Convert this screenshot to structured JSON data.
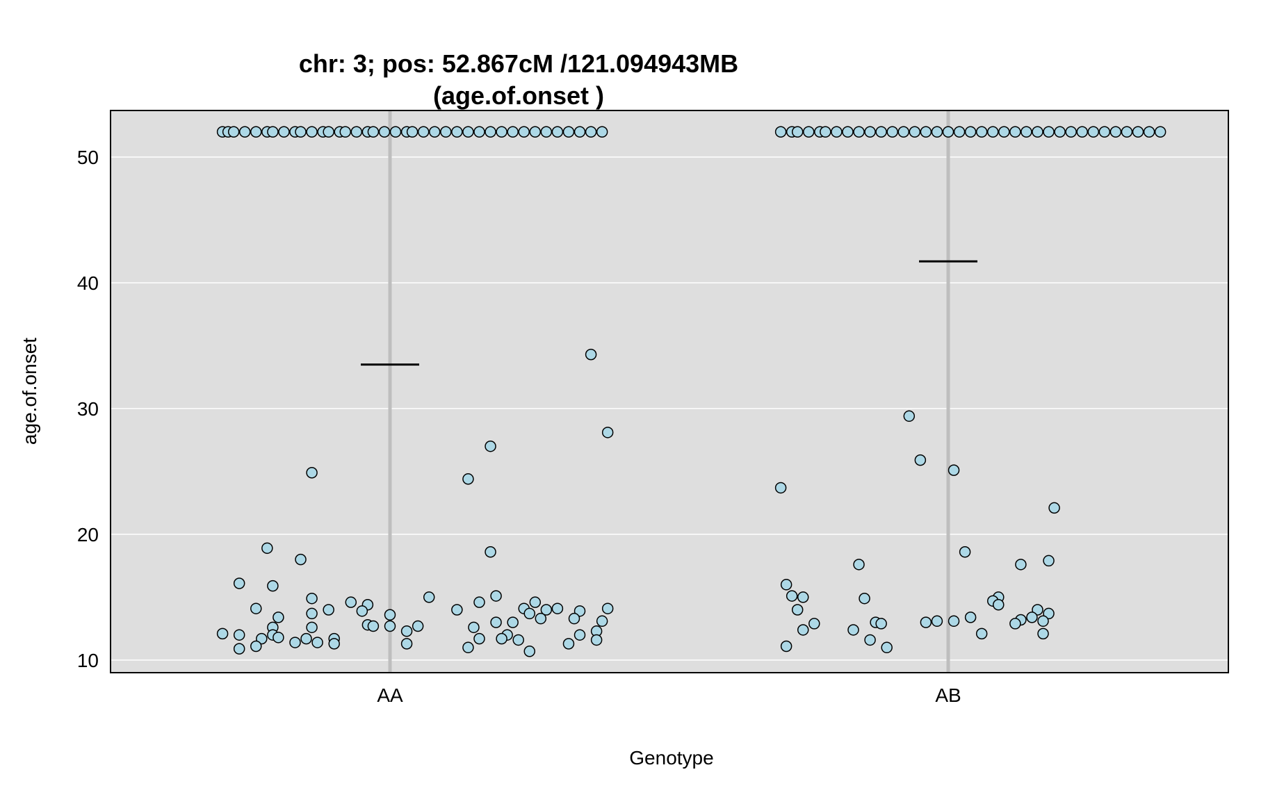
{
  "chart_data": {
    "type": "scatter",
    "title": "chr: 3; pos: 52.867cM /121.094943MB",
    "subtitle": "(age.of.onset )",
    "xlabel": "Genotype",
    "ylabel": "age.of.onset",
    "categories": [
      "AA",
      "AB"
    ],
    "ylim": [
      9,
      53.7
    ],
    "yticks": [
      10,
      20,
      30,
      40,
      50
    ],
    "ytick_labels": [
      "10",
      "20",
      "30",
      "40",
      "50"
    ],
    "grid": true,
    "colors": {
      "panel_background": "#dedede",
      "grid": "#ffffff",
      "point_fill": "#add8e6",
      "point_stroke": "#000000",
      "category_line": "#bebebe",
      "mean_line": "#000000"
    },
    "series": [
      {
        "category": "AA",
        "mean": 33.5,
        "points": [
          {
            "x": 0.7,
            "y": 52
          },
          {
            "x": 0.71,
            "y": 52
          },
          {
            "x": 0.72,
            "y": 52
          },
          {
            "x": 0.74,
            "y": 52
          },
          {
            "x": 0.76,
            "y": 52
          },
          {
            "x": 0.78,
            "y": 52
          },
          {
            "x": 0.79,
            "y": 52
          },
          {
            "x": 0.81,
            "y": 52
          },
          {
            "x": 0.83,
            "y": 52
          },
          {
            "x": 0.84,
            "y": 52
          },
          {
            "x": 0.86,
            "y": 52
          },
          {
            "x": 0.88,
            "y": 52
          },
          {
            "x": 0.89,
            "y": 52
          },
          {
            "x": 0.91,
            "y": 52
          },
          {
            "x": 0.92,
            "y": 52
          },
          {
            "x": 0.94,
            "y": 52
          },
          {
            "x": 0.96,
            "y": 52
          },
          {
            "x": 0.97,
            "y": 52
          },
          {
            "x": 0.99,
            "y": 52
          },
          {
            "x": 1.01,
            "y": 52
          },
          {
            "x": 1.03,
            "y": 52
          },
          {
            "x": 1.04,
            "y": 52
          },
          {
            "x": 1.06,
            "y": 52
          },
          {
            "x": 1.08,
            "y": 52
          },
          {
            "x": 1.1,
            "y": 52
          },
          {
            "x": 1.12,
            "y": 52
          },
          {
            "x": 1.14,
            "y": 52
          },
          {
            "x": 1.16,
            "y": 52
          },
          {
            "x": 1.18,
            "y": 52
          },
          {
            "x": 1.2,
            "y": 52
          },
          {
            "x": 1.22,
            "y": 52
          },
          {
            "x": 1.24,
            "y": 52
          },
          {
            "x": 1.26,
            "y": 52
          },
          {
            "x": 1.28,
            "y": 52
          },
          {
            "x": 1.3,
            "y": 52
          },
          {
            "x": 1.32,
            "y": 52
          },
          {
            "x": 1.34,
            "y": 52
          },
          {
            "x": 1.36,
            "y": 52
          },
          {
            "x": 1.38,
            "y": 52
          },
          {
            "x": 1.36,
            "y": 34.3
          },
          {
            "x": 1.39,
            "y": 28.1
          },
          {
            "x": 1.18,
            "y": 27.0
          },
          {
            "x": 0.86,
            "y": 24.9
          },
          {
            "x": 1.14,
            "y": 24.4
          },
          {
            "x": 0.78,
            "y": 18.9
          },
          {
            "x": 1.18,
            "y": 18.6
          },
          {
            "x": 0.84,
            "y": 18.0
          },
          {
            "x": 0.73,
            "y": 16.1
          },
          {
            "x": 0.79,
            "y": 15.9
          },
          {
            "x": 1.07,
            "y": 15.0
          },
          {
            "x": 1.19,
            "y": 15.1
          },
          {
            "x": 0.86,
            "y": 14.9
          },
          {
            "x": 0.93,
            "y": 14.6
          },
          {
            "x": 0.96,
            "y": 14.4
          },
          {
            "x": 1.16,
            "y": 14.6
          },
          {
            "x": 1.26,
            "y": 14.6
          },
          {
            "x": 1.3,
            "y": 14.1
          },
          {
            "x": 1.39,
            "y": 14.1
          },
          {
            "x": 0.76,
            "y": 14.1
          },
          {
            "x": 0.89,
            "y": 14.0
          },
          {
            "x": 1.12,
            "y": 14.0
          },
          {
            "x": 1.24,
            "y": 14.1
          },
          {
            "x": 1.28,
            "y": 14.0
          },
          {
            "x": 1.34,
            "y": 13.9
          },
          {
            "x": 0.95,
            "y": 13.9
          },
          {
            "x": 0.86,
            "y": 13.7
          },
          {
            "x": 1.25,
            "y": 13.7
          },
          {
            "x": 1.0,
            "y": 13.6
          },
          {
            "x": 0.8,
            "y": 13.4
          },
          {
            "x": 1.27,
            "y": 13.3
          },
          {
            "x": 1.33,
            "y": 13.3
          },
          {
            "x": 1.38,
            "y": 13.1
          },
          {
            "x": 1.19,
            "y": 13.0
          },
          {
            "x": 1.22,
            "y": 13.0
          },
          {
            "x": 0.96,
            "y": 12.8
          },
          {
            "x": 0.97,
            "y": 12.7
          },
          {
            "x": 1.0,
            "y": 12.7
          },
          {
            "x": 1.05,
            "y": 12.7
          },
          {
            "x": 0.79,
            "y": 12.6
          },
          {
            "x": 0.86,
            "y": 12.6
          },
          {
            "x": 1.15,
            "y": 12.6
          },
          {
            "x": 1.03,
            "y": 12.3
          },
          {
            "x": 1.37,
            "y": 12.3
          },
          {
            "x": 0.7,
            "y": 12.1
          },
          {
            "x": 0.73,
            "y": 12.0
          },
          {
            "x": 0.79,
            "y": 12.0
          },
          {
            "x": 1.21,
            "y": 12.0
          },
          {
            "x": 1.34,
            "y": 12.0
          },
          {
            "x": 0.8,
            "y": 11.8
          },
          {
            "x": 0.77,
            "y": 11.7
          },
          {
            "x": 0.85,
            "y": 11.7
          },
          {
            "x": 0.9,
            "y": 11.7
          },
          {
            "x": 1.16,
            "y": 11.7
          },
          {
            "x": 1.2,
            "y": 11.7
          },
          {
            "x": 1.23,
            "y": 11.6
          },
          {
            "x": 1.37,
            "y": 11.6
          },
          {
            "x": 0.83,
            "y": 11.4
          },
          {
            "x": 0.87,
            "y": 11.4
          },
          {
            "x": 0.9,
            "y": 11.3
          },
          {
            "x": 1.03,
            "y": 11.3
          },
          {
            "x": 1.32,
            "y": 11.3
          },
          {
            "x": 0.76,
            "y": 11.1
          },
          {
            "x": 0.73,
            "y": 10.9
          },
          {
            "x": 1.14,
            "y": 11.0
          },
          {
            "x": 1.25,
            "y": 10.7
          }
        ]
      },
      {
        "category": "AB",
        "mean": 41.7,
        "points": [
          {
            "x": 0.7,
            "y": 52
          },
          {
            "x": 0.72,
            "y": 52
          },
          {
            "x": 0.73,
            "y": 52
          },
          {
            "x": 0.75,
            "y": 52
          },
          {
            "x": 0.77,
            "y": 52
          },
          {
            "x": 0.78,
            "y": 52
          },
          {
            "x": 0.8,
            "y": 52
          },
          {
            "x": 0.82,
            "y": 52
          },
          {
            "x": 0.84,
            "y": 52
          },
          {
            "x": 0.86,
            "y": 52
          },
          {
            "x": 0.88,
            "y": 52
          },
          {
            "x": 0.9,
            "y": 52
          },
          {
            "x": 0.92,
            "y": 52
          },
          {
            "x": 0.94,
            "y": 52
          },
          {
            "x": 0.96,
            "y": 52
          },
          {
            "x": 0.98,
            "y": 52
          },
          {
            "x": 1.0,
            "y": 52
          },
          {
            "x": 1.02,
            "y": 52
          },
          {
            "x": 1.04,
            "y": 52
          },
          {
            "x": 1.06,
            "y": 52
          },
          {
            "x": 1.08,
            "y": 52
          },
          {
            "x": 1.1,
            "y": 52
          },
          {
            "x": 1.12,
            "y": 52
          },
          {
            "x": 1.14,
            "y": 52
          },
          {
            "x": 1.16,
            "y": 52
          },
          {
            "x": 1.18,
            "y": 52
          },
          {
            "x": 1.2,
            "y": 52
          },
          {
            "x": 1.22,
            "y": 52
          },
          {
            "x": 1.24,
            "y": 52
          },
          {
            "x": 1.26,
            "y": 52
          },
          {
            "x": 1.28,
            "y": 52
          },
          {
            "x": 1.3,
            "y": 52
          },
          {
            "x": 1.32,
            "y": 52
          },
          {
            "x": 1.34,
            "y": 52
          },
          {
            "x": 1.36,
            "y": 52
          },
          {
            "x": 1.38,
            "y": 52
          },
          {
            "x": 0.93,
            "y": 29.4
          },
          {
            "x": 0.95,
            "y": 25.9
          },
          {
            "x": 1.01,
            "y": 25.1
          },
          {
            "x": 0.7,
            "y": 23.7
          },
          {
            "x": 1.19,
            "y": 22.1
          },
          {
            "x": 1.03,
            "y": 18.6
          },
          {
            "x": 1.18,
            "y": 17.9
          },
          {
            "x": 0.84,
            "y": 17.6
          },
          {
            "x": 1.13,
            "y": 17.6
          },
          {
            "x": 0.71,
            "y": 16.0
          },
          {
            "x": 0.72,
            "y": 15.1
          },
          {
            "x": 0.74,
            "y": 15.0
          },
          {
            "x": 0.85,
            "y": 14.9
          },
          {
            "x": 1.09,
            "y": 15.0
          },
          {
            "x": 1.08,
            "y": 14.7
          },
          {
            "x": 1.09,
            "y": 14.4
          },
          {
            "x": 1.16,
            "y": 14.0
          },
          {
            "x": 0.73,
            "y": 14.0
          },
          {
            "x": 1.18,
            "y": 13.7
          },
          {
            "x": 1.15,
            "y": 13.4
          },
          {
            "x": 1.04,
            "y": 13.4
          },
          {
            "x": 1.13,
            "y": 13.2
          },
          {
            "x": 1.17,
            "y": 13.1
          },
          {
            "x": 0.96,
            "y": 13.0
          },
          {
            "x": 0.98,
            "y": 13.1
          },
          {
            "x": 1.01,
            "y": 13.1
          },
          {
            "x": 0.87,
            "y": 13.0
          },
          {
            "x": 0.88,
            "y": 12.9
          },
          {
            "x": 0.76,
            "y": 12.9
          },
          {
            "x": 1.12,
            "y": 12.9
          },
          {
            "x": 0.74,
            "y": 12.4
          },
          {
            "x": 0.83,
            "y": 12.4
          },
          {
            "x": 1.06,
            "y": 12.1
          },
          {
            "x": 1.17,
            "y": 12.1
          },
          {
            "x": 0.86,
            "y": 11.6
          },
          {
            "x": 0.71,
            "y": 11.1
          },
          {
            "x": 0.89,
            "y": 11.0
          }
        ]
      }
    ]
  }
}
